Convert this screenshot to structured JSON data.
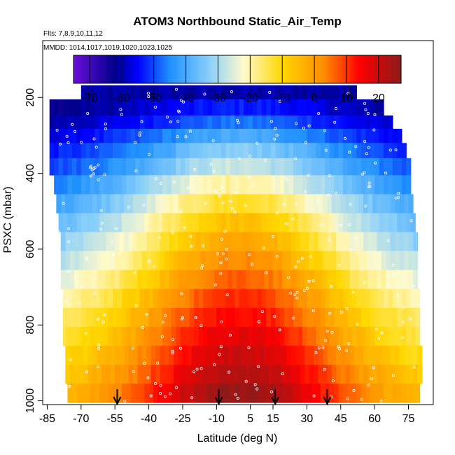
{
  "chart_data": {
    "type": "heatmap",
    "title": "ATOM3 Northbound Static_Air_Temp",
    "flights_note": "Flts: 7,8,9,10,11,12",
    "dates_note": "MMDD: 1014,1017,1019,1020,1023,1025",
    "xlabel": "Latitude (deg N)",
    "ylabel": "PSXC (mbar)",
    "xlim": [
      -87,
      86
    ],
    "ylim": [
      1010,
      50
    ],
    "y_reversed": true,
    "x_ticks": [
      -85,
      -70,
      -55,
      -40,
      -25,
      -10,
      5,
      15,
      30,
      45,
      60,
      75
    ],
    "y_ticks": [
      200,
      400,
      600,
      800,
      1000
    ],
    "colorbar": {
      "min": -75,
      "max": 27,
      "ticks": [
        -70,
        -60,
        -50,
        -40,
        -30,
        -20,
        -10,
        0,
        10,
        20
      ],
      "colors": [
        "#6a0fd8",
        "#00008b",
        "#0000ff",
        "#1e90ff",
        "#87cefa",
        "#fffacd",
        "#ffd700",
        "#ff8c00",
        "#ff0000",
        "#8b1a1a"
      ],
      "stops": [
        -75,
        -62,
        -55,
        -45,
        -33,
        -22,
        -10,
        3,
        14,
        27
      ]
    },
    "pressure_levels": [
      180,
      230,
      265,
      300,
      340,
      380,
      430,
      480,
      530,
      580,
      630,
      680,
      730,
      780,
      830,
      880,
      930,
      980
    ],
    "level_lat_ranges": [
      [
        -70,
        52
      ],
      [
        -84,
        63
      ],
      [
        -84,
        68
      ],
      [
        -84,
        72
      ],
      [
        -84,
        74
      ],
      [
        -84,
        76
      ],
      [
        -82,
        76
      ],
      [
        -81,
        77
      ],
      [
        -80,
        78
      ],
      [
        -79,
        78
      ],
      [
        -79,
        78
      ],
      [
        -79,
        79
      ],
      [
        -78,
        79
      ],
      [
        -78,
        79
      ],
      [
        -78,
        80
      ],
      [
        -77,
        80
      ],
      [
        -77,
        80
      ],
      [
        -76,
        80
      ]
    ],
    "temperature_profile": {
      "pressure": [
        180,
        230,
        265,
        300,
        340,
        380,
        430,
        480,
        530,
        580,
        630,
        680,
        730,
        780,
        830,
        880,
        930,
        980
      ],
      "tropical_temp": [
        -60,
        -53,
        -47,
        -40,
        -33,
        -27,
        -19,
        -12,
        -6,
        -1,
        3,
        7,
        11,
        14,
        17,
        20,
        23,
        26
      ],
      "polar_temp": [
        -61,
        -63,
        -61,
        -58,
        -55,
        -52,
        -48,
        -44,
        -40,
        -36,
        -32,
        -28,
        -24,
        -20,
        -17,
        -14,
        -11,
        -8
      ]
    },
    "markers_latitude": [
      -54,
      -9,
      16,
      39
    ]
  }
}
